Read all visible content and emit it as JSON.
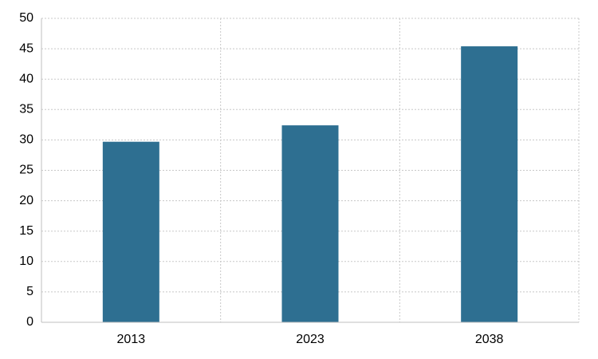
{
  "chart_data": {
    "type": "bar",
    "categories": [
      "2013",
      "2023",
      "2038"
    ],
    "values": [
      29.7,
      32.4,
      45.4
    ],
    "color": "#2e6f91",
    "ylim": [
      0,
      50
    ],
    "yticks": [
      0,
      5,
      10,
      15,
      20,
      25,
      30,
      35,
      40,
      45,
      50
    ],
    "grid": true
  }
}
